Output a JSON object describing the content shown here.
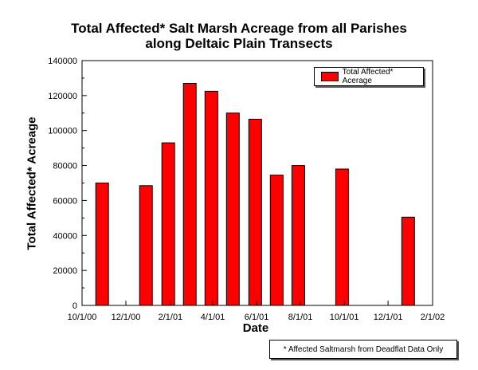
{
  "chart_data": {
    "type": "bar",
    "title": [
      "Total Affected* Salt Marsh Acreage from all Parishes",
      "along Deltaic Plain Transects"
    ],
    "xlabel": "Date",
    "ylabel": "Total Affected* Acreage",
    "x_ticks": [
      "10/1/00",
      "12/1/00",
      "2/1/01",
      "4/1/01",
      "6/1/01",
      "8/1/01",
      "10/1/01",
      "12/1/01",
      "2/1/02"
    ],
    "y_ticks": [
      "0",
      "20000",
      "40000",
      "60000",
      "80000",
      "100000",
      "120000",
      "140000"
    ],
    "ylim": [
      0,
      140000
    ],
    "xlim": [
      "10/1/00",
      "2/1/02"
    ],
    "grid": false,
    "legend_position": "top-right",
    "colors": {
      "bar": "#ff0000"
    },
    "series": [
      {
        "name": "Total Affected* Acerage",
        "data": [
          {
            "x": "10/29/00",
            "y": 70000
          },
          {
            "x": "12/29/00",
            "y": 68500
          },
          {
            "x": "1/29/01",
            "y": 93000
          },
          {
            "x": "2/28/01",
            "y": 127000
          },
          {
            "x": "3/30/01",
            "y": 122500
          },
          {
            "x": "4/29/01",
            "y": 110000
          },
          {
            "x": "5/30/01",
            "y": 106500
          },
          {
            "x": "6/29/01",
            "y": 74500
          },
          {
            "x": "7/29/01",
            "y": 80000
          },
          {
            "x": "9/28/01",
            "y": 78000
          },
          {
            "x": "12/29/01",
            "y": 50500
          }
        ]
      }
    ],
    "footnote": "* Affected Saltmarsh from Deadflat Data Only"
  }
}
